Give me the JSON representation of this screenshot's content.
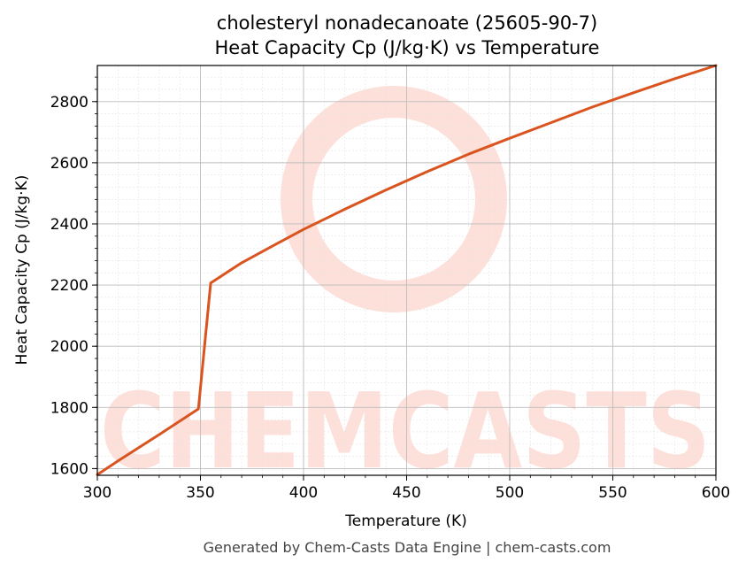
{
  "chart_data": {
    "type": "line",
    "title": "cholesteryl nonadecanoate (25605-90-7)",
    "subtitle": "Heat Capacity Cp (J/kg·K) vs Temperature",
    "xlabel": "Temperature (K)",
    "ylabel": "Heat Capacity Cp (J/kg·K)",
    "xlim": [
      300,
      600
    ],
    "ylim": [
      1578,
      2918
    ],
    "xticks": [
      300,
      350,
      400,
      450,
      500,
      550,
      600
    ],
    "yticks": [
      1600,
      1800,
      2000,
      2200,
      2400,
      2600,
      2800
    ],
    "grid": true,
    "legend": "none",
    "series": [
      {
        "color": "#d9541f",
        "x": [
          300,
          310,
          320,
          330,
          340,
          349,
          355,
          370,
          385,
          400,
          420,
          440,
          460,
          480,
          500,
          520,
          540,
          560,
          580,
          600
        ],
        "y": [
          1580,
          1625,
          1668,
          1711,
          1755,
          1795,
          2207,
          2273,
          2328,
          2382,
          2448,
          2511,
          2571,
          2628,
          2680,
          2731,
          2782,
          2829,
          2875,
          2918
        ]
      }
    ]
  },
  "footer": "Generated by Chem-Casts Data Engine | chem-casts.com",
  "watermark": {
    "text": "CHEMCASTS",
    "color": "#fde0da"
  }
}
